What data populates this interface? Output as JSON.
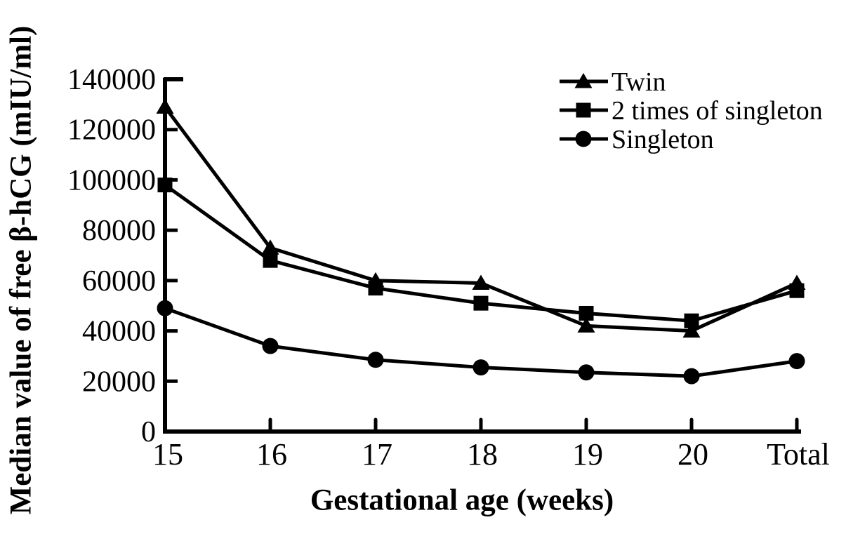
{
  "figure": {
    "background_color": "#ffffff",
    "ink_color": "#000000"
  },
  "chart_data": {
    "type": "line",
    "title": "",
    "xlabel": "Gestational age (weeks)",
    "ylabel": "Median value of free β-hCG (mIU/ml)",
    "categories": [
      "15",
      "16",
      "17",
      "18",
      "19",
      "20",
      "Total"
    ],
    "ylim": [
      0,
      140000
    ],
    "y_ticks": [
      0,
      20000,
      40000,
      60000,
      80000,
      100000,
      120000,
      140000
    ],
    "y_tick_labels": [
      "0",
      "20000",
      "40000",
      "60000",
      "80000",
      "100000",
      "120000",
      "140000"
    ],
    "grid": false,
    "legend_position": "top-right-inside",
    "series": [
      {
        "name": "Twin",
        "marker": "triangle",
        "color": "#000000",
        "values": [
          129000,
          73000,
          60000,
          59000,
          42000,
          40000,
          59000
        ]
      },
      {
        "name": "2 times of singleton",
        "marker": "square",
        "color": "#000000",
        "values": [
          98000,
          68000,
          57000,
          51000,
          47000,
          44000,
          56000
        ]
      },
      {
        "name": "Singleton",
        "marker": "circle",
        "color": "#000000",
        "values": [
          49000,
          34000,
          28500,
          25500,
          23500,
          22000,
          28000
        ]
      }
    ]
  }
}
